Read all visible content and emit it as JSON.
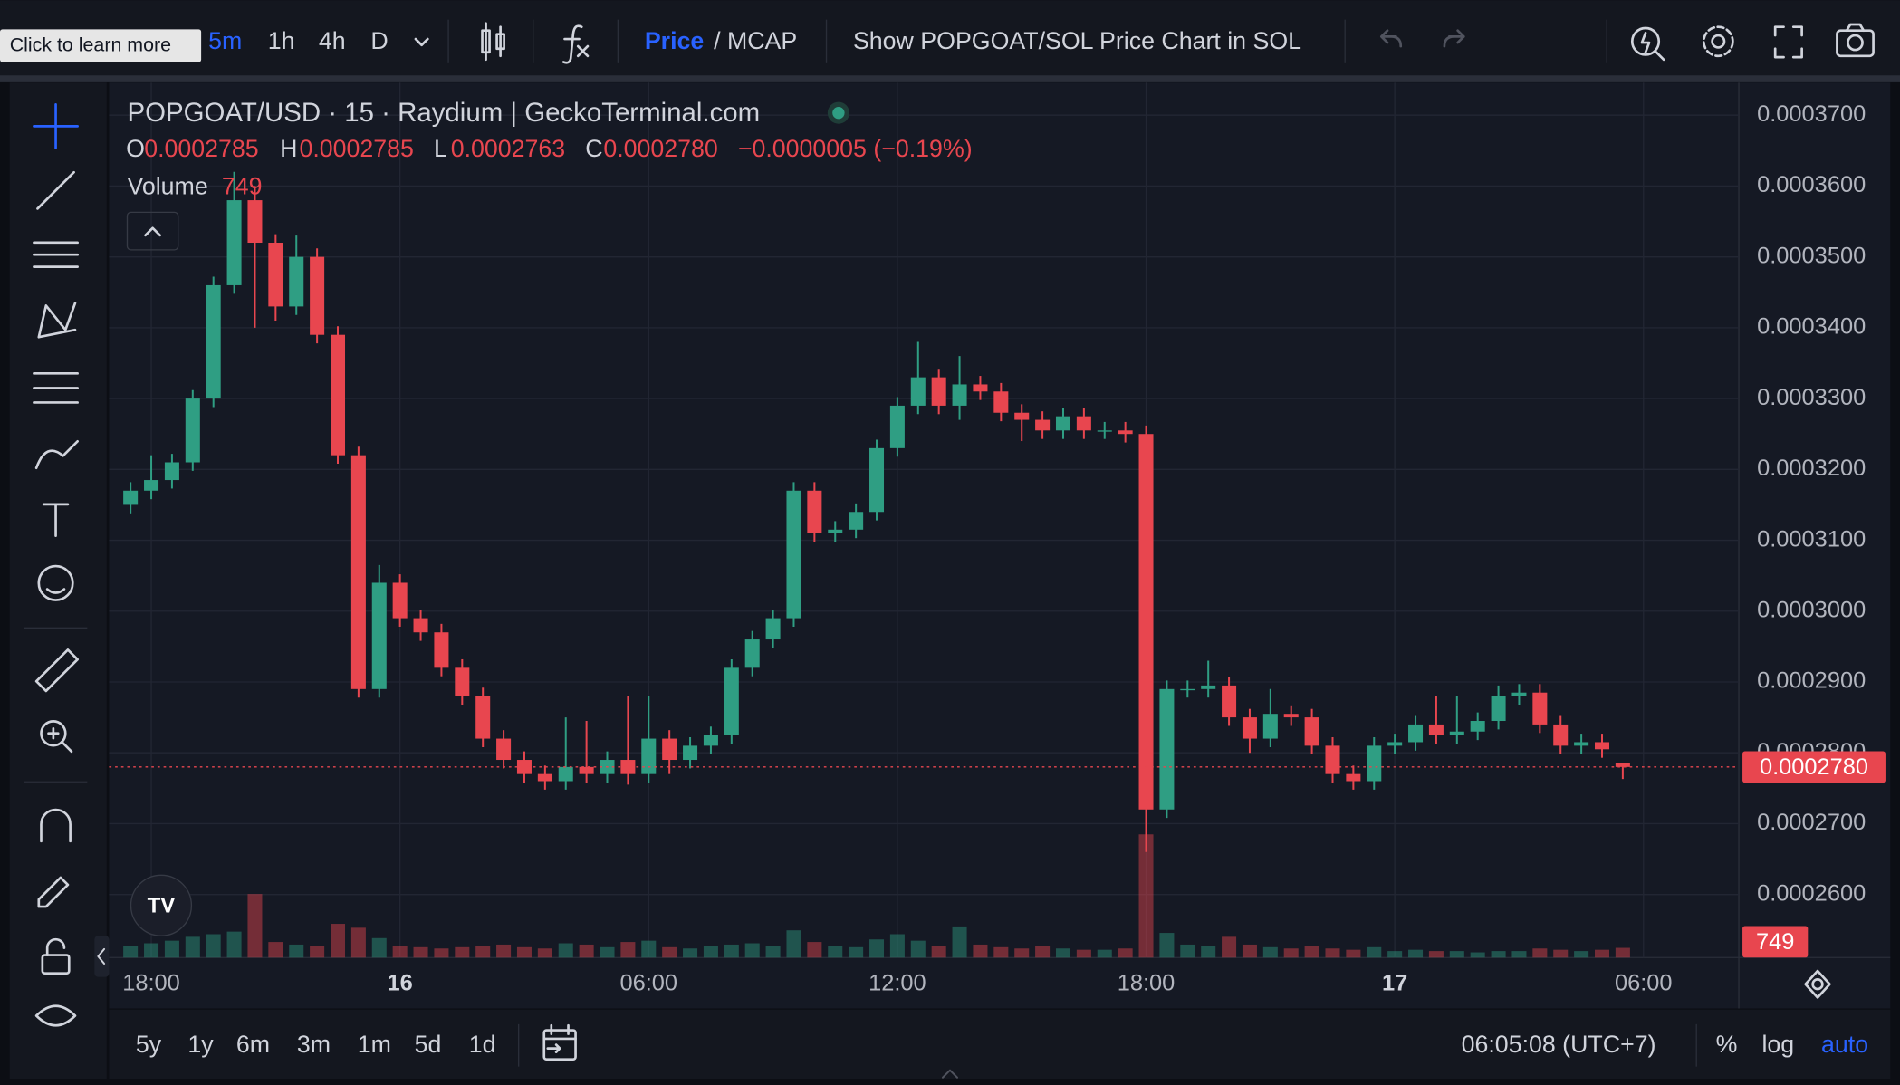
{
  "toolbar": {
    "tooltip": "Click to learn more",
    "intervals": [
      "5m",
      "1h",
      "4h",
      "D"
    ],
    "price": "Price",
    "mcap": "/ MCAP",
    "sol_toggle": "Show POPGOAT/SOL Price Chart in SOL"
  },
  "legend": {
    "title": "POPGOAT/USD · 15 · Raydium | GeckoTerminal.com",
    "o": "O",
    "o_value": "0.0002785",
    "h": "H",
    "h_value": "0.0002785",
    "l": "L",
    "l_value": "0.0002763",
    "c": "C",
    "c_value": "0.0002780",
    "change": "−0.0000005 (−0.19%)",
    "volume": "Volume",
    "volume_value": "749"
  },
  "price_label": "0.0002780",
  "volume_label": "749",
  "bottom": {
    "ranges": [
      "5y",
      "1y",
      "6m",
      "3m",
      "1m",
      "5d",
      "1d"
    ],
    "clock": "06:05:08 (UTC+7)",
    "percent": "%",
    "log": "log",
    "auto": "auto"
  },
  "chart_data": {
    "type": "candlestick",
    "x": [
      -6.5,
      -6,
      -5.5,
      -5,
      -4.5,
      -4,
      -3.5,
      -3,
      -2.5,
      -2,
      -1.5,
      -1,
      -0.5,
      0,
      0.5,
      1,
      1.5,
      2,
      2.5,
      3,
      3.5,
      4,
      4.5,
      5,
      5.5,
      6,
      6.5,
      7,
      7.5,
      8,
      8.5,
      9,
      9.5,
      10,
      10.5,
      11,
      11.5,
      12,
      12.5,
      13,
      13.5,
      14,
      14.5,
      15,
      15.5,
      16,
      16.5,
      17,
      17.5,
      18,
      18.5,
      19,
      19.5,
      20,
      20.5,
      21,
      21.5,
      22,
      22.5,
      23,
      23.5,
      24,
      24.5,
      25,
      25.5,
      26,
      26.5,
      27,
      27.5,
      28,
      28.5,
      29,
      29.5
    ],
    "open": [
      0.000315,
      0.000317,
      0.0003185,
      0.000321,
      0.00033,
      0.000346,
      0.000358,
      0.000352,
      0.000343,
      0.00035,
      0.000339,
      0.000322,
      0.000289,
      0.000304,
      0.000299,
      0.000297,
      0.000292,
      0.000288,
      0.000282,
      0.000279,
      0.000277,
      0.000276,
      0.000278,
      0.000277,
      0.000279,
      0.000277,
      0.000282,
      0.000279,
      0.000281,
      0.0002825,
      0.000292,
      0.000296,
      0.000299,
      0.000317,
      0.000311,
      0.0003115,
      0.000314,
      0.000323,
      0.000329,
      0.000333,
      0.000329,
      0.000332,
      0.000331,
      0.000328,
      0.000327,
      0.0003255,
      0.0003275,
      0.0003255,
      0.0003255,
      0.000325,
      0.000272,
      0.000289,
      0.000289,
      0.0002895,
      0.000285,
      0.000282,
      0.0002855,
      0.000285,
      0.000281,
      0.000277,
      0.000276,
      0.000281,
      0.0002815,
      0.000284,
      0.0002825,
      0.000283,
      0.0002845,
      0.000288,
      0.0002885,
      0.000284,
      0.000281,
      0.0002815,
      0.0002785
    ],
    "high": [
      0.0003182,
      0.000322,
      0.0003222,
      0.0003312,
      0.0003472,
      0.000362,
      0.00036,
      0.0003532,
      0.000353,
      0.0003512,
      0.0003402,
      0.0003232,
      0.0003065,
      0.0003052,
      0.0003002,
      0.0002982,
      0.0002932,
      0.0002892,
      0.0002832,
      0.0002802,
      0.0002782,
      0.000285,
      0.0002845,
      0.0002802,
      0.000288,
      0.000288,
      0.0002832,
      0.0002822,
      0.0002837,
      0.0002932,
      0.0002972,
      0.0003002,
      0.0003182,
      0.0003182,
      0.0003127,
      0.0003152,
      0.0003242,
      0.0003302,
      0.000338,
      0.0003342,
      0.000336,
      0.0003332,
      0.0003322,
      0.0003292,
      0.0003282,
      0.0003287,
      0.0003287,
      0.0003267,
      0.0003267,
      0.0003262,
      0.0002902,
      0.0002902,
      0.000293,
      0.0002907,
      0.0002862,
      0.000289,
      0.0002867,
      0.0002862,
      0.0002822,
      0.0002782,
      0.0002822,
      0.0002827,
      0.0002852,
      0.000288,
      0.000288,
      0.0002857,
      0.0002895,
      0.0002897,
      0.0002897,
      0.0002852,
      0.0002827,
      0.0002827,
      0.0002785
    ],
    "low": [
      0.0003138,
      0.0003158,
      0.0003173,
      0.0003198,
      0.0003288,
      0.0003448,
      0.00034,
      0.000341,
      0.0003418,
      0.0003378,
      0.0003208,
      0.0002878,
      0.0002878,
      0.0002978,
      0.0002958,
      0.0002908,
      0.0002868,
      0.0002808,
      0.0002778,
      0.0002758,
      0.0002748,
      0.0002748,
      0.0002758,
      0.0002758,
      0.0002755,
      0.0002758,
      0.000277,
      0.0002778,
      0.0002798,
      0.0002813,
      0.0002908,
      0.0002948,
      0.0002978,
      0.0003098,
      0.0003098,
      0.0003103,
      0.0003128,
      0.0003218,
      0.0003278,
      0.0003278,
      0.000327,
      0.0003298,
      0.0003268,
      0.000324,
      0.0003243,
      0.0003243,
      0.0003243,
      0.0003243,
      0.0003238,
      0.000266,
      0.0002708,
      0.0002878,
      0.0002878,
      0.0002838,
      0.00028,
      0.0002808,
      0.0002838,
      0.0002798,
      0.0002758,
      0.0002748,
      0.0002748,
      0.0002798,
      0.0002803,
      0.0002813,
      0.0002813,
      0.0002818,
      0.0002833,
      0.0002868,
      0.0002828,
      0.0002798,
      0.0002798,
      0.0002793,
      0.0002763
    ],
    "close": [
      0.000317,
      0.0003185,
      0.000321,
      0.00033,
      0.000346,
      0.000358,
      0.000352,
      0.000343,
      0.00035,
      0.000339,
      0.000322,
      0.000289,
      0.000304,
      0.000299,
      0.000297,
      0.000292,
      0.000288,
      0.000282,
      0.000279,
      0.000277,
      0.000276,
      0.000278,
      0.000277,
      0.000279,
      0.000277,
      0.000282,
      0.000279,
      0.000281,
      0.0002825,
      0.000292,
      0.000296,
      0.000299,
      0.000317,
      0.000311,
      0.0003115,
      0.000314,
      0.000323,
      0.000329,
      0.000333,
      0.000329,
      0.000332,
      0.000331,
      0.000328,
      0.000327,
      0.0003255,
      0.0003275,
      0.0003255,
      0.0003255,
      0.000325,
      0.000272,
      0.000289,
      0.000289,
      0.0002895,
      0.000285,
      0.000282,
      0.0002855,
      0.000285,
      0.000281,
      0.000277,
      0.000276,
      0.000281,
      0.0002815,
      0.000284,
      0.0002825,
      0.000283,
      0.0002845,
      0.000288,
      0.0002885,
      0.000284,
      0.000281,
      0.0002815,
      0.0002805,
      0.000278
    ],
    "volume": [
      900,
      1100,
      1300,
      1600,
      1800,
      2000,
      4900,
      1200,
      1000,
      900,
      2600,
      2300,
      1500,
      900,
      800,
      700,
      800,
      900,
      1000,
      800,
      700,
      1100,
      1000,
      800,
      1200,
      1300,
      800,
      700,
      900,
      1000,
      1100,
      900,
      2100,
      1200,
      900,
      800,
      1400,
      1800,
      1300,
      900,
      2400,
      1000,
      800,
      700,
      900,
      700,
      600,
      600,
      700,
      9500,
      1900,
      1000,
      900,
      1600,
      1000,
      800,
      700,
      900,
      700,
      600,
      800,
      500,
      600,
      500,
      500,
      400,
      500,
      500,
      700,
      600,
      500,
      600,
      749
    ],
    "up_color": "#2f9e83",
    "down_color": "#e8464f",
    "xlim": [
      -6.96,
      32.3
    ],
    "xticks": [
      {
        "value": -6,
        "label": "18:00"
      },
      {
        "value": 0,
        "label": "16"
      },
      {
        "value": 6,
        "label": "06:00"
      },
      {
        "value": 12,
        "label": "12:00"
      },
      {
        "value": 18,
        "label": "18:00"
      },
      {
        "value": 24,
        "label": "17"
      },
      {
        "value": 30,
        "label": "06:00"
      }
    ],
    "ylim": [
      0.0002511,
      0.0003746
    ],
    "yticks": [
      {
        "value": 0.00026,
        "label": "0.0002600"
      },
      {
        "value": 0.00027,
        "label": "0.0002700"
      },
      {
        "value": 0.00028,
        "label": "0.0002800"
      },
      {
        "value": 0.00029,
        "label": "0.0002900"
      },
      {
        "value": 0.0003,
        "label": "0.0003000"
      },
      {
        "value": 0.00031,
        "label": "0.0003100"
      },
      {
        "value": 0.00032,
        "label": "0.0003200"
      },
      {
        "value": 0.00033,
        "label": "0.0003300"
      },
      {
        "value": 0.00034,
        "label": "0.0003400"
      },
      {
        "value": 0.00035,
        "label": "0.0003500"
      },
      {
        "value": 0.00036,
        "label": "0.0003600"
      },
      {
        "value": 0.00037,
        "label": "0.0003700"
      }
    ],
    "grid": true
  }
}
